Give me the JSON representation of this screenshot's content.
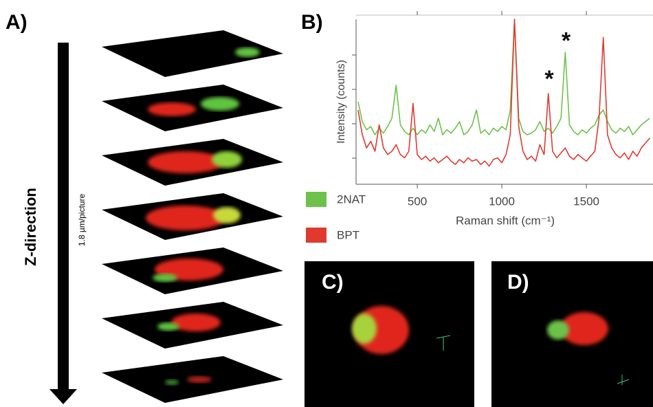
{
  "panels": {
    "a": {
      "label": "A)",
      "axis_label": "Z-direction",
      "step_label": "1.8 µm/picture"
    },
    "c": {
      "label": "C)"
    },
    "d": {
      "label": "D)"
    }
  },
  "chart_data": {
    "type": "line",
    "label": "B)",
    "x_label": "Raman shift (cm⁻¹)",
    "y_label": "Intensity (counts)",
    "x": [
      150,
      175,
      200,
      225,
      250,
      275,
      300,
      325,
      350,
      375,
      400,
      425,
      450,
      475,
      500,
      525,
      550,
      575,
      600,
      625,
      650,
      675,
      700,
      725,
      750,
      775,
      800,
      825,
      850,
      875,
      900,
      925,
      950,
      975,
      1000,
      1025,
      1050,
      1075,
      1100,
      1125,
      1150,
      1175,
      1200,
      1225,
      1250,
      1275,
      1300,
      1325,
      1350,
      1375,
      1400,
      1425,
      1450,
      1475,
      1500,
      1525,
      1550,
      1575,
      1600,
      1625,
      1650,
      1675,
      1700,
      1725,
      1750,
      1775,
      1800,
      1825,
      1850,
      1875
    ],
    "series": [
      {
        "name": "2NAT",
        "color": "#6cc24a",
        "values": [
          50,
          38,
          33,
          35,
          30,
          34,
          31,
          35,
          40,
          60,
          36,
          32,
          30,
          34,
          30,
          33,
          31,
          36,
          32,
          40,
          30,
          33,
          31,
          34,
          38,
          30,
          32,
          36,
          45,
          31,
          33,
          30,
          34,
          32,
          35,
          33,
          45,
          100,
          40,
          32,
          30,
          31,
          33,
          38,
          32,
          34,
          31,
          35,
          40,
          80,
          36,
          32,
          30,
          33,
          31,
          34,
          36,
          42,
          45,
          38,
          33,
          31,
          34,
          32,
          35,
          30,
          33,
          36,
          38,
          40
        ]
      },
      {
        "name": "BPT",
        "color": "#e03a2f",
        "values": [
          45,
          30,
          22,
          26,
          20,
          36,
          22,
          18,
          20,
          24,
          18,
          16,
          20,
          49,
          18,
          15,
          17,
          14,
          16,
          13,
          15,
          17,
          14,
          12,
          15,
          13,
          16,
          14,
          15,
          12,
          14,
          11,
          15,
          16,
          13,
          18,
          30,
          100,
          35,
          20,
          15,
          17,
          14,
          24,
          18,
          55,
          20,
          16,
          19,
          22,
          17,
          15,
          18,
          16,
          14,
          17,
          20,
          40,
          89,
          30,
          22,
          18,
          16,
          19,
          15,
          20,
          17,
          22,
          25,
          28
        ]
      }
    ],
    "xlim": [
      138,
      1894
    ],
    "ylim": [
      0,
      100
    ],
    "xticks": [
      500,
      1000,
      1500
    ],
    "annotations": [
      {
        "text": "*",
        "x": 1280,
        "y": 63
      },
      {
        "text": "*",
        "x": 1380,
        "y": 86
      }
    ]
  }
}
